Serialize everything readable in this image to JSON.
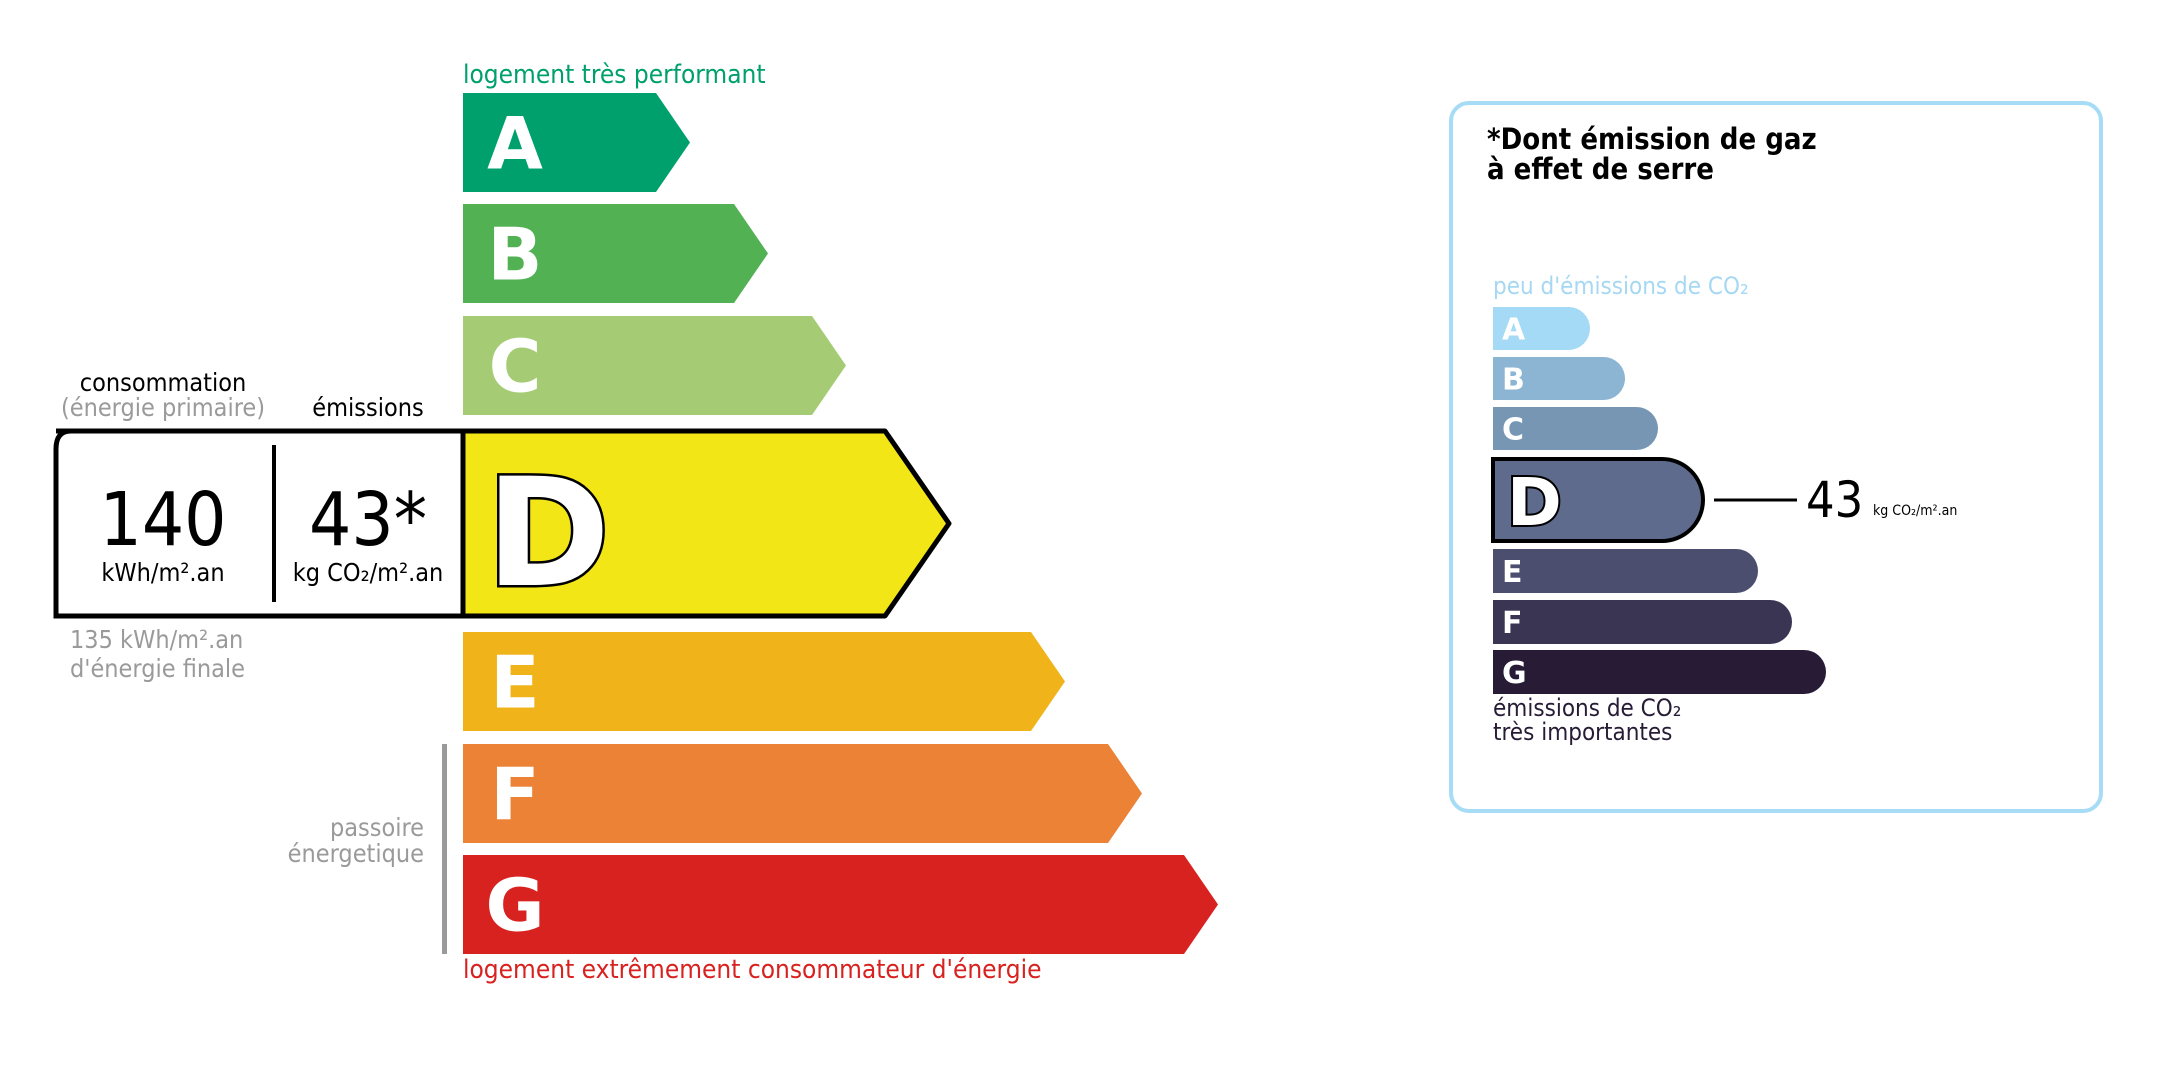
{
  "energy": {
    "top_label": "logement très performant",
    "bottom_label": "logement extrêmement consommateur d'énergie",
    "passoire_line1": "passoire",
    "passoire_line2": "énergetique",
    "classes": [
      {
        "letter": "A",
        "color": "#00a06d"
      },
      {
        "letter": "B",
        "color": "#52b153"
      },
      {
        "letter": "C",
        "color": "#a5cc74"
      },
      {
        "letter": "D",
        "color": "#f2e617"
      },
      {
        "letter": "E",
        "color": "#f0b41a"
      },
      {
        "letter": "F",
        "color": "#eb8235"
      },
      {
        "letter": "G",
        "color": "#d7221f"
      }
    ],
    "current_class": "D",
    "consumption_header": "consommation",
    "consumption_subheader": "(énergie primaire)",
    "emissions_header": "émissions",
    "consumption_value": "140",
    "consumption_unit": "kWh/m².an",
    "emissions_value": "43*",
    "emissions_unit": "kg CO₂/m².an",
    "final_energy_line1": "135 kWh/m².an",
    "final_energy_line2": "d'énergie finale",
    "colors": {
      "top": "#00a06d",
      "bottom": "#d7221f",
      "muted": "#9a9a9a"
    }
  },
  "ges": {
    "title_line1": "*Dont émission de gaz",
    "title_line2": "à effet de serre",
    "top_label": "peu d'émissions de CO₂",
    "bottom_line1": "émissions de CO₂",
    "bottom_line2": "très importantes",
    "classes": [
      {
        "letter": "A",
        "color": "#a4daf5"
      },
      {
        "letter": "B",
        "color": "#8cb4d3"
      },
      {
        "letter": "C",
        "color": "#7796b4"
      },
      {
        "letter": "D",
        "color": "#5e6b8d"
      },
      {
        "letter": "E",
        "color": "#4b4e6f"
      },
      {
        "letter": "F",
        "color": "#393553"
      },
      {
        "letter": "G",
        "color": "#281b35"
      }
    ],
    "current_class": "D",
    "value": "43",
    "unit": "kg CO₂/m².an",
    "border_color": "#a6dcf5"
  }
}
